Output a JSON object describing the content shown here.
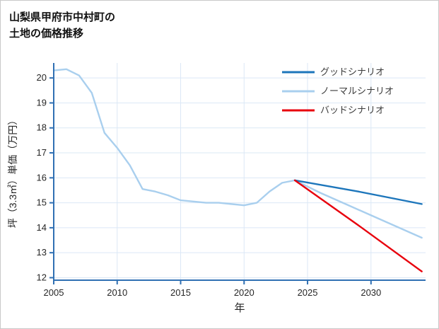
{
  "header": {
    "title_line1": "山梨県甲府市中村町の",
    "title_line2": "土地の価格推移"
  },
  "chart_data": {
    "type": "line",
    "title": "山梨県甲府市中村町の土地の価格推移",
    "xlabel": "年",
    "ylabel": "坪（3.3㎡）単価（万円）",
    "xlim": [
      2005,
      2034.3
    ],
    "ylim": [
      11.9,
      20.6
    ],
    "xticks": [
      2005,
      2010,
      2015,
      2020,
      2025,
      2030
    ],
    "yticks": [
      12,
      13,
      14,
      15,
      16,
      17,
      18,
      19,
      20
    ],
    "grid": true,
    "legend_position": "top-right",
    "colors": {
      "axis": "#3070b3",
      "grid": "#dbe8f6",
      "tick_label": "#262626",
      "legend_label": "#3c3c3c"
    },
    "series": [
      {
        "name": "グッドシナリオ",
        "color": "#1d76bb",
        "x": [
          2024,
          2029,
          2034
        ],
        "y": [
          15.9,
          15.45,
          14.95
        ]
      },
      {
        "name": "ノーマルシナリオ",
        "color": "#a9cfee",
        "x": [
          2005,
          2006,
          2007,
          2008,
          2009,
          2010,
          2011,
          2012,
          2013,
          2014,
          2015,
          2016,
          2017,
          2018,
          2019,
          2020,
          2021,
          2022,
          2023,
          2024,
          2026,
          2028,
          2030,
          2032,
          2034
        ],
        "y": [
          20.3,
          20.35,
          20.1,
          19.4,
          17.8,
          17.2,
          16.5,
          15.55,
          15.45,
          15.3,
          15.1,
          15.05,
          15.0,
          15.0,
          14.95,
          14.9,
          15.0,
          15.45,
          15.8,
          15.9,
          15.4,
          14.95,
          14.5,
          14.05,
          13.6
        ]
      },
      {
        "name": "バッドシナリオ",
        "color": "#e8000d",
        "x": [
          2024,
          2029,
          2034
        ],
        "y": [
          15.9,
          14.1,
          12.25
        ]
      }
    ]
  }
}
